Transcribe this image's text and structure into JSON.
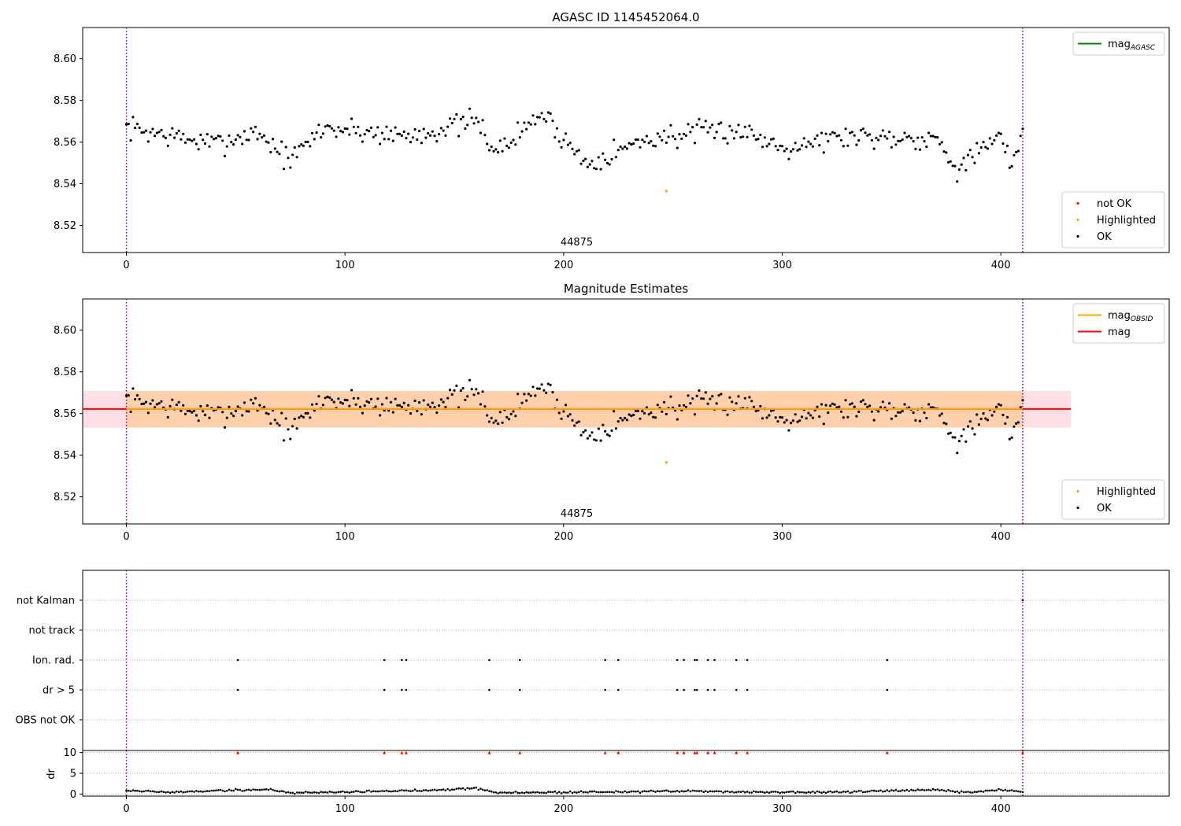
{
  "chart_data": [
    {
      "type": "scatter",
      "title": "AGASC ID 1145452064.0",
      "xlabel": "",
      "ylabel": "",
      "xlim": [
        -20,
        477
      ],
      "ylim": [
        8.507,
        8.615
      ],
      "xticks": [
        0,
        100,
        200,
        300,
        400
      ],
      "yticks": [
        8.52,
        8.54,
        8.56,
        8.58,
        8.6
      ],
      "vlines": [
        0,
        410
      ],
      "annotation": {
        "text": "44875",
        "x": 206
      },
      "grid": false,
      "legends": [
        {
          "placement": "top-right",
          "entries": [
            {
              "label": "mag",
              "sub": "AGASC",
              "color": "#008000",
              "kind": "line"
            }
          ]
        },
        {
          "placement": "bottom-right",
          "entries": [
            {
              "label": "not OK",
              "color": "#ff0000",
              "kind": "dot"
            },
            {
              "label": "Highlighted",
              "color": "#ffa500",
              "kind": "dot"
            },
            {
              "label": "OK",
              "color": "#000000",
              "kind": "dot"
            }
          ]
        }
      ],
      "series": [
        {
          "name": "not OK",
          "color": "#ff0000",
          "points": []
        },
        {
          "name": "Highlighted",
          "color": "#ffa500",
          "points": [
            [
              247,
              8.5365
            ]
          ]
        },
        {
          "name": "OK",
          "color": "#000000",
          "wave": {
            "n": 411,
            "base": 8.5625,
            "noise": 0.0085,
            "segments": [
              [
                0,
                8.567
              ],
              [
                40,
                8.559
              ],
              [
                60,
                8.565
              ],
              [
                75,
                8.551
              ],
              [
                90,
                8.567
              ],
              [
                130,
                8.563
              ],
              [
                160,
                8.57
              ],
              [
                170,
                8.555
              ],
              [
                190,
                8.574
              ],
              [
                210,
                8.55
              ],
              [
                240,
                8.562
              ],
              [
                280,
                8.566
              ],
              [
                300,
                8.558
              ],
              [
                330,
                8.563
              ],
              [
                370,
                8.562
              ],
              [
                380,
                8.548
              ],
              [
                400,
                8.562
              ],
              [
                405,
                8.548
              ],
              [
                410,
                8.567
              ]
            ]
          }
        }
      ]
    },
    {
      "type": "scatter",
      "title": "Magnitude Estimates",
      "xlabel": "",
      "ylabel": "",
      "xlim": [
        -20,
        477
      ],
      "ylim": [
        8.507,
        8.615
      ],
      "xticks": [
        0,
        100,
        200,
        300,
        400
      ],
      "yticks": [
        8.52,
        8.54,
        8.56,
        8.58,
        8.6
      ],
      "vlines": [
        0,
        410
      ],
      "annotation": {
        "text": "44875",
        "x": 206
      },
      "bands": [
        {
          "x": [
            -20,
            432
          ],
          "y": [
            8.5533,
            8.5708
          ],
          "color": "#ffc0cb",
          "opacity": 0.5
        },
        {
          "x": [
            0,
            410
          ],
          "y": [
            8.5533,
            8.5708
          ],
          "color": "#ffa500",
          "opacity": 0.25
        }
      ],
      "hlines": [
        {
          "y": 8.5622,
          "x": [
            -20,
            432
          ],
          "color": "#ff0000"
        },
        {
          "y": 8.5622,
          "x": [
            0,
            410
          ],
          "color": "#ffa500"
        }
      ],
      "legends": [
        {
          "placement": "top-right",
          "entries": [
            {
              "label": "mag",
              "sub": "OBSID",
              "color": "#ffa500",
              "kind": "line"
            },
            {
              "label": "mag",
              "sub": "",
              "color": "#ff0000",
              "kind": "line"
            }
          ]
        },
        {
          "placement": "bottom-right",
          "entries": [
            {
              "label": "Highlighted",
              "color": "#ffa500",
              "kind": "dot"
            },
            {
              "label": "OK",
              "color": "#000000",
              "kind": "dot"
            }
          ]
        }
      ],
      "series": [
        {
          "name": "Highlighted",
          "color": "#ffa500",
          "points": [
            [
              247,
              8.5365
            ]
          ]
        },
        {
          "name": "OK",
          "color": "#000000",
          "same_as_panel": 0
        }
      ]
    },
    {
      "type": "scatter",
      "title": "",
      "xlim": [
        -20,
        477
      ],
      "flag_rows": [
        "not Kalman",
        "not track",
        "Ion. rad.",
        "dr > 5",
        "OBS not OK"
      ],
      "flag_points": {
        "not Kalman": [
          410
        ],
        "not track": [],
        "Ion. rad.": [
          51,
          118,
          126,
          128,
          166,
          180,
          219,
          225,
          252,
          255,
          260,
          261,
          266,
          269,
          279,
          284,
          348
        ],
        "dr > 5": [
          51,
          118,
          126,
          128,
          166,
          180,
          219,
          225,
          252,
          255,
          260,
          261,
          266,
          269,
          279,
          284,
          348
        ],
        "OBS not OK": []
      },
      "vlines": [
        0,
        410
      ],
      "grid": true
    },
    {
      "type": "scatter",
      "title": "",
      "xlabel": "",
      "ylabel": "dr",
      "xlim": [
        -20,
        477
      ],
      "ylim": [
        -0.5,
        10.5
      ],
      "xticks": [
        0,
        100,
        200,
        300,
        400
      ],
      "yticks": [
        0,
        5,
        10
      ],
      "vlines": [
        0,
        410
      ],
      "clipped_markers": {
        "y": 10,
        "color": "#ff0000",
        "x": [
          51,
          118,
          126,
          128,
          166,
          180,
          219,
          225,
          252,
          255,
          260,
          261,
          266,
          269,
          279,
          284,
          348,
          410
        ]
      },
      "series": [
        {
          "name": "dr",
          "color": "#000000",
          "wave": {
            "n": 411,
            "base": 0.6,
            "noise": 0.35,
            "segments": [
              [
                0,
                0.9
              ],
              [
                20,
                0.4
              ],
              [
                40,
                0.8
              ],
              [
                65,
                1.1
              ],
              [
                75,
                0.3
              ],
              [
                130,
                0.8
              ],
              [
                160,
                1.4
              ],
              [
                170,
                0.3
              ],
              [
                260,
                0.7
              ],
              [
                300,
                0.4
              ],
              [
                330,
                0.5
              ],
              [
                370,
                1.0
              ],
              [
                385,
                0.4
              ],
              [
                400,
                1.0
              ],
              [
                410,
                0.6
              ]
            ]
          }
        }
      ]
    }
  ]
}
